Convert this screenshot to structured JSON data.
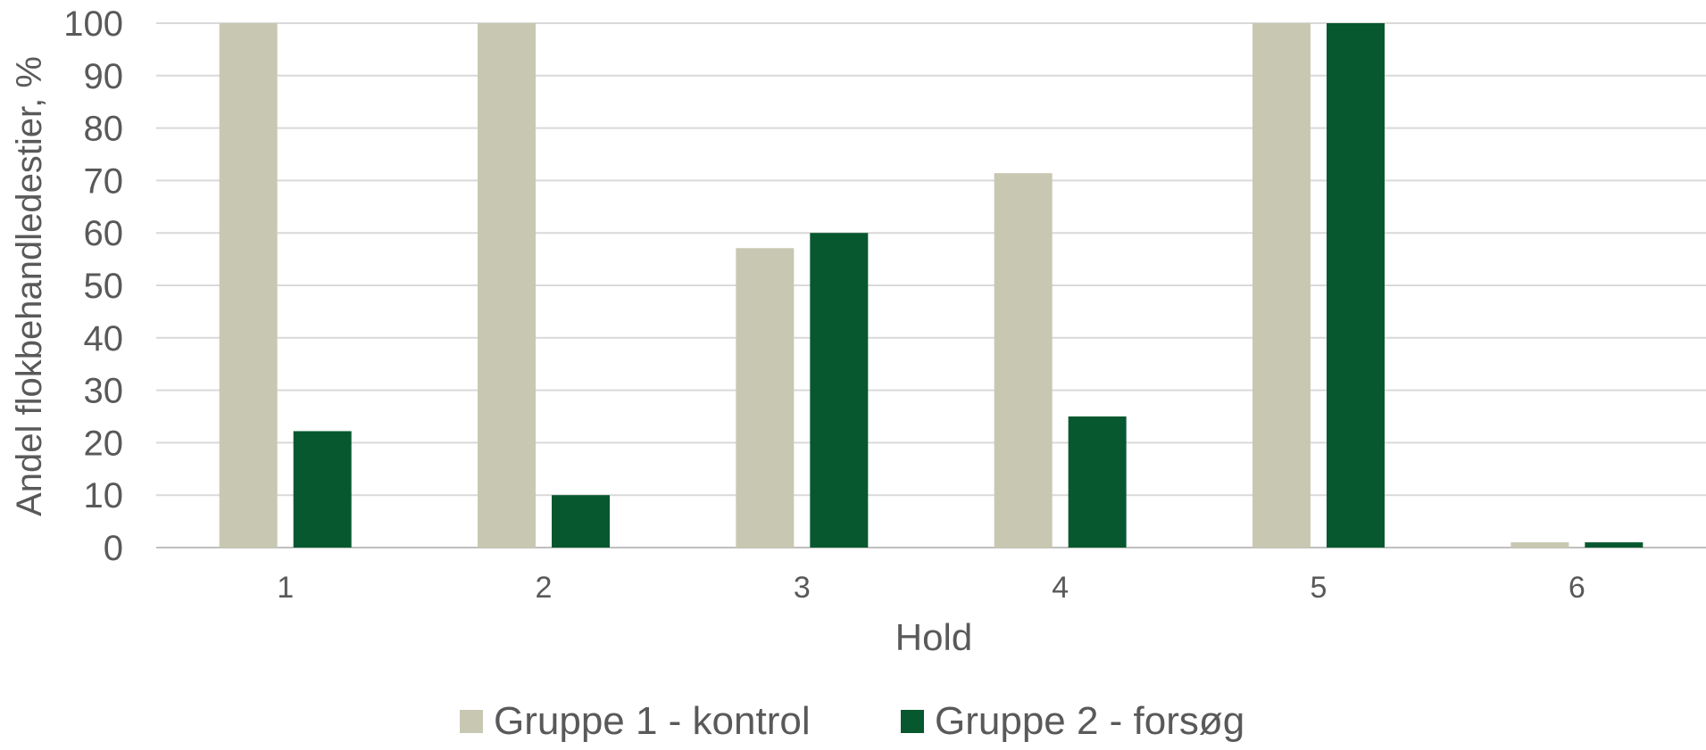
{
  "chart_data": {
    "type": "bar",
    "title": "",
    "xlabel": "Hold",
    "ylabel": "Andel flokbehandledestier, %",
    "categories": [
      "1",
      "2",
      "3",
      "4",
      "5",
      "6"
    ],
    "ylim": [
      0,
      100
    ],
    "yticks": [
      0,
      10,
      20,
      30,
      40,
      50,
      60,
      70,
      80,
      90,
      100
    ],
    "grid": true,
    "legend_position": "bottom",
    "series": [
      {
        "name": "Gruppe 1 - kontrol",
        "color": "#c8c8b2",
        "values": [
          100,
          100,
          57.1,
          71.4,
          100,
          1
        ]
      },
      {
        "name": "Gruppe 2 - forsøg",
        "color": "#08582f",
        "values": [
          22.2,
          10,
          60,
          25,
          100,
          1
        ]
      }
    ]
  }
}
